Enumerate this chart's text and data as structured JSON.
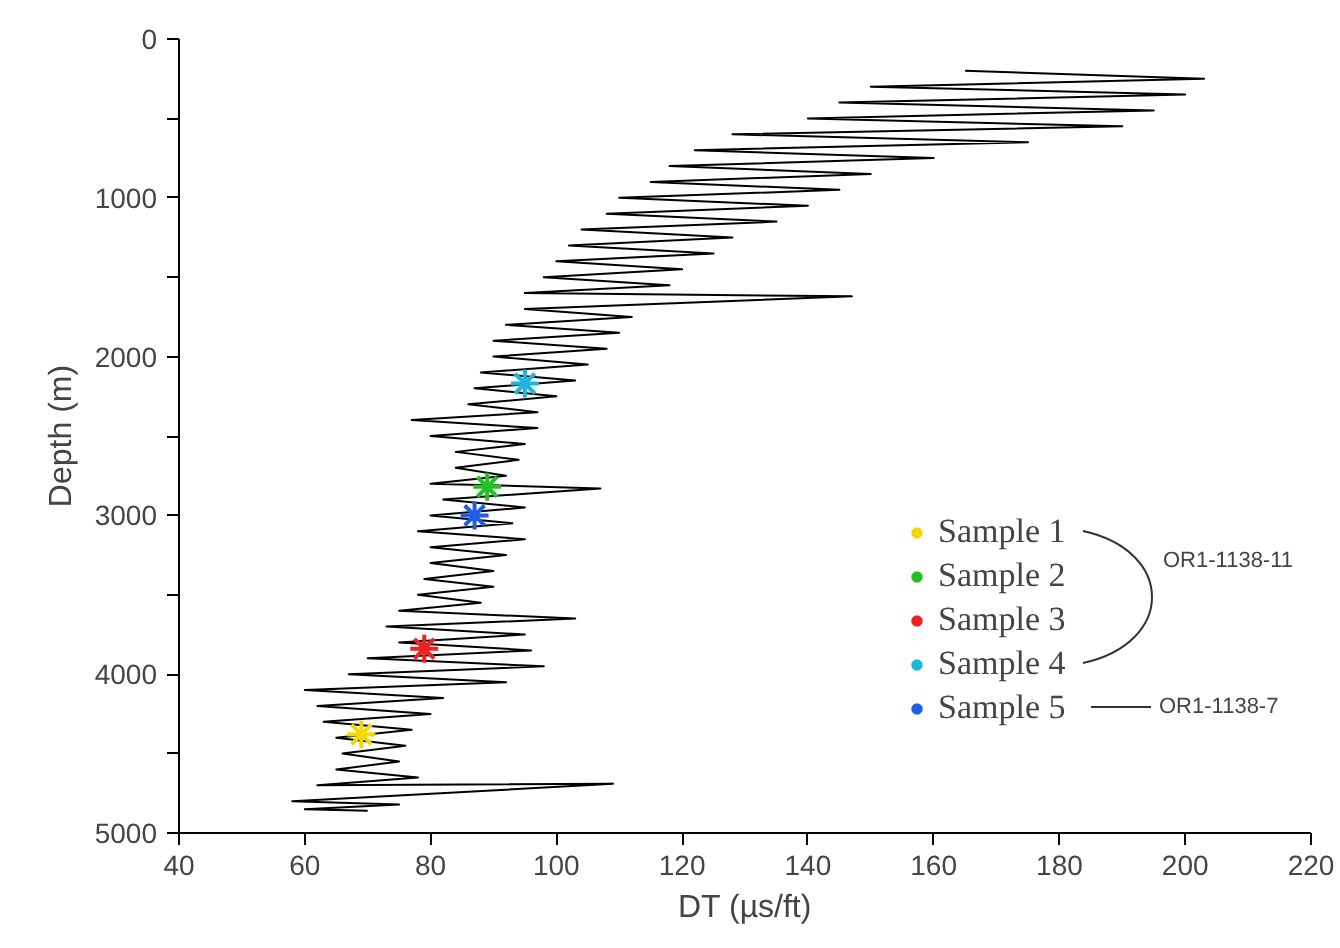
{
  "chart_data": {
    "type": "line",
    "xlabel": "DT (µs/ft)",
    "ylabel": "Depth (m)",
    "xlim": [
      40,
      220
    ],
    "xticks": [
      40,
      60,
      80,
      100,
      120,
      140,
      160,
      180,
      200,
      220
    ],
    "ylim": [
      5000,
      0
    ],
    "yticks": [
      0,
      {
        "value": 500,
        "label": null
      },
      1000,
      {
        "value": 1500,
        "label": null
      },
      2000,
      {
        "value": 2500,
        "label": null
      },
      3000,
      {
        "value": 3500,
        "label": null
      },
      4000,
      {
        "value": 4500,
        "label": null
      },
      5000
    ],
    "grid": false,
    "legend": "right",
    "annotations": [
      "OR1-1138-11",
      "OR1-1138-7"
    ],
    "series": [
      {
        "color": "#000000",
        "line_style": "solid",
        "x": [
          165,
          203,
          150,
          200,
          145,
          195,
          140,
          190,
          128,
          175,
          122,
          160,
          118,
          150,
          115,
          145,
          110,
          140,
          108,
          135,
          104,
          128,
          102,
          125,
          100,
          120,
          98,
          118,
          95,
          147,
          95,
          112,
          92,
          110,
          90,
          108,
          90,
          105,
          88,
          103,
          87,
          100,
          86,
          97,
          77,
          97,
          80,
          95,
          84,
          94,
          84,
          92,
          80,
          107,
          82,
          95,
          80,
          93,
          78,
          95,
          80,
          92,
          80,
          90,
          79,
          90,
          78,
          88,
          75,
          103,
          73,
          95,
          75,
          96,
          70,
          98,
          67,
          92,
          60,
          82,
          62,
          80,
          63,
          77,
          65,
          76,
          66,
          75,
          65,
          78,
          62,
          109,
          58,
          75,
          60,
          70
        ],
        "values": [
          200,
          250,
          300,
          350,
          400,
          450,
          500,
          550,
          600,
          650,
          700,
          750,
          800,
          850,
          900,
          950,
          1000,
          1050,
          1100,
          1150,
          1200,
          1250,
          1300,
          1350,
          1400,
          1450,
          1500,
          1550,
          1600,
          1620,
          1700,
          1750,
          1800,
          1850,
          1900,
          1950,
          2000,
          2050,
          2100,
          2150,
          2200,
          2250,
          2300,
          2350,
          2400,
          2450,
          2500,
          2550,
          2600,
          2650,
          2700,
          2750,
          2800,
          2830,
          2900,
          2950,
          3000,
          3050,
          3100,
          3150,
          3200,
          3250,
          3300,
          3350,
          3400,
          3450,
          3500,
          3550,
          3600,
          3650,
          3700,
          3750,
          3800,
          3850,
          3900,
          3950,
          4000,
          4050,
          4100,
          4150,
          4200,
          4250,
          4300,
          4350,
          4400,
          4450,
          4500,
          4550,
          4600,
          4650,
          4700,
          4690,
          4800,
          4820,
          4850,
          4860
        ]
      },
      {
        "type": "scatter",
        "name": "Sample 1",
        "color": "#f5d800",
        "marker": "cross",
        "x": [
          69
        ],
        "values": [
          4380
        ]
      },
      {
        "type": "scatter",
        "name": "Sample 2",
        "color": "#22c022",
        "marker": "cross",
        "x": [
          89
        ],
        "values": [
          2820
        ]
      },
      {
        "type": "scatter",
        "name": "Sample 3",
        "color": "#ee2020",
        "marker": "cross",
        "x": [
          79
        ],
        "values": [
          3840
        ]
      },
      {
        "type": "scatter",
        "name": "Sample 4",
        "color": "#1ab8e0",
        "marker": "cross",
        "x": [
          95
        ],
        "values": [
          2170
        ]
      },
      {
        "type": "scatter",
        "name": "Sample 5",
        "color": "#2060e0",
        "marker": "cross",
        "x": [
          87
        ],
        "values": [
          3000
        ]
      }
    ]
  }
}
